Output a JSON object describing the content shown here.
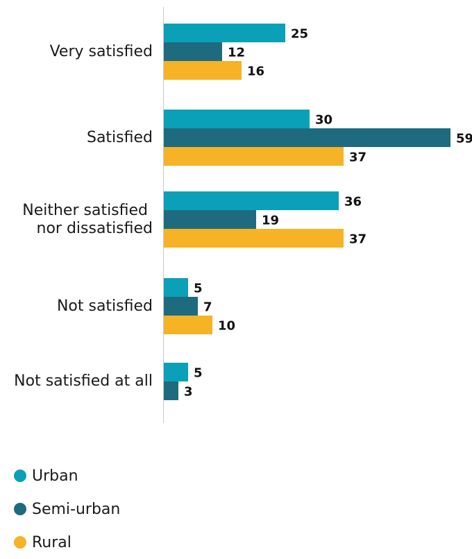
{
  "chart_data": {
    "type": "bar",
    "orientation": "horizontal",
    "categories": [
      "Very satisfied",
      "Satisfied",
      "Neither satisfied nor dissatisfied",
      "Not satisfied",
      "Not satisfied at all"
    ],
    "category_lines": [
      [
        "Very satisfied"
      ],
      [
        "Satisfied"
      ],
      [
        "Neither satisfied ",
        "nor dissatisfied"
      ],
      [
        "Not satisfied"
      ],
      [
        "Not satisfied at all"
      ]
    ],
    "series": [
      {
        "name": "Urban",
        "color": "#0aa0b8",
        "values": [
          25,
          30,
          36,
          5,
          5
        ]
      },
      {
        "name": "Semi-urban",
        "color": "#1e6b80",
        "values": [
          12,
          59,
          19,
          7,
          3
        ]
      },
      {
        "name": "Rural",
        "color": "#f5b325",
        "values": [
          16,
          37,
          37,
          10,
          null
        ]
      }
    ],
    "xlim": [
      0,
      59
    ],
    "grid": false,
    "legend_position": "bottom-left"
  }
}
